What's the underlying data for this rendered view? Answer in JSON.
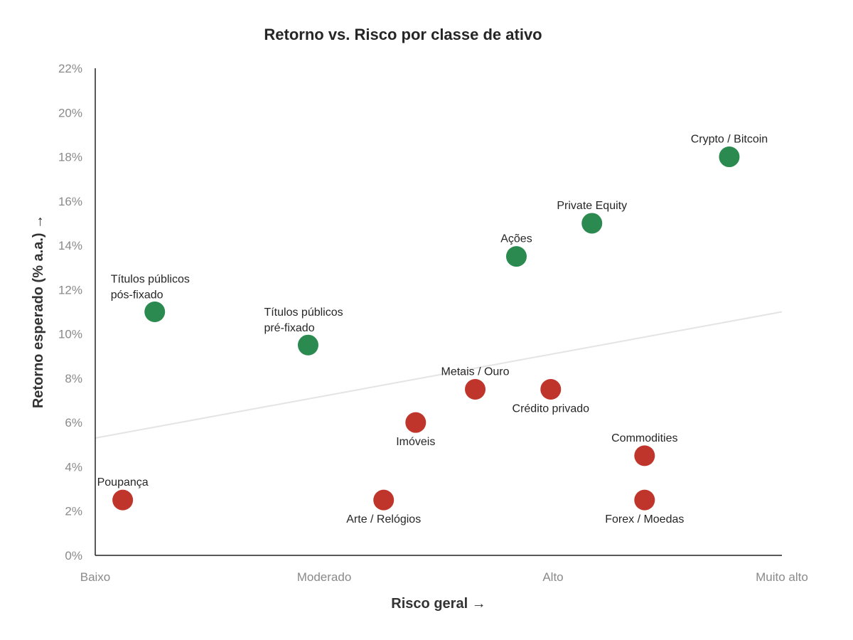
{
  "chart_data": {
    "type": "scatter",
    "title": "Retorno vs. Risco por classe de ativo",
    "xlabel": "Risco geral →",
    "ylabel": "Retorno esperado (% a.a.) →",
    "x_tick_labels": [
      "Baixo",
      "Moderado",
      "Alto",
      "Muito alto"
    ],
    "xlim": [
      0,
      3
    ],
    "ylim": [
      0,
      22
    ],
    "y_ticks": [
      0,
      2,
      4,
      6,
      8,
      10,
      12,
      14,
      16,
      18,
      20,
      22
    ],
    "y_tick_suffix": "%",
    "grid": false,
    "legend": "none",
    "colors": {
      "green": "#2a8a4f",
      "red": "#c0352b",
      "trend": "#e4e4e4"
    },
    "trend_line": {
      "x": [
        0,
        3
      ],
      "y": [
        5.3,
        11
      ]
    },
    "points": [
      {
        "label": [
          "Poupança"
        ],
        "x": 0.12,
        "y": 2.5,
        "color": "red",
        "label_pos": "above"
      },
      {
        "label": [
          "Títulos públicos",
          "pós-fixado"
        ],
        "x": 0.26,
        "y": 11,
        "color": "green",
        "label_pos": "above"
      },
      {
        "label": [
          "Títulos públicos",
          "pré-fixado"
        ],
        "x": 0.93,
        "y": 9.5,
        "color": "green",
        "label_pos": "above"
      },
      {
        "label": [
          "Arte / Relógios"
        ],
        "x": 1.26,
        "y": 2.5,
        "color": "red",
        "label_pos": "below"
      },
      {
        "label": [
          "Imóveis"
        ],
        "x": 1.4,
        "y": 6,
        "color": "red",
        "label_pos": "below"
      },
      {
        "label": [
          "Metais / Ouro"
        ],
        "x": 1.66,
        "y": 7.5,
        "color": "red",
        "label_pos": "above"
      },
      {
        "label": [
          "Ações"
        ],
        "x": 1.84,
        "y": 13.5,
        "color": "green",
        "label_pos": "above"
      },
      {
        "label": [
          "Crédito privado"
        ],
        "x": 1.99,
        "y": 7.5,
        "color": "red",
        "label_pos": "below"
      },
      {
        "label": [
          "Private Equity"
        ],
        "x": 2.17,
        "y": 15,
        "color": "green",
        "label_pos": "above"
      },
      {
        "label": [
          "Commodities"
        ],
        "x": 2.4,
        "y": 4.5,
        "color": "red",
        "label_pos": "above"
      },
      {
        "label": [
          "Forex / Moedas"
        ],
        "x": 2.4,
        "y": 2.5,
        "color": "red",
        "label_pos": "below"
      },
      {
        "label": [
          "Crypto / Bitcoin"
        ],
        "x": 2.77,
        "y": 18,
        "color": "green",
        "label_pos": "above"
      }
    ]
  }
}
